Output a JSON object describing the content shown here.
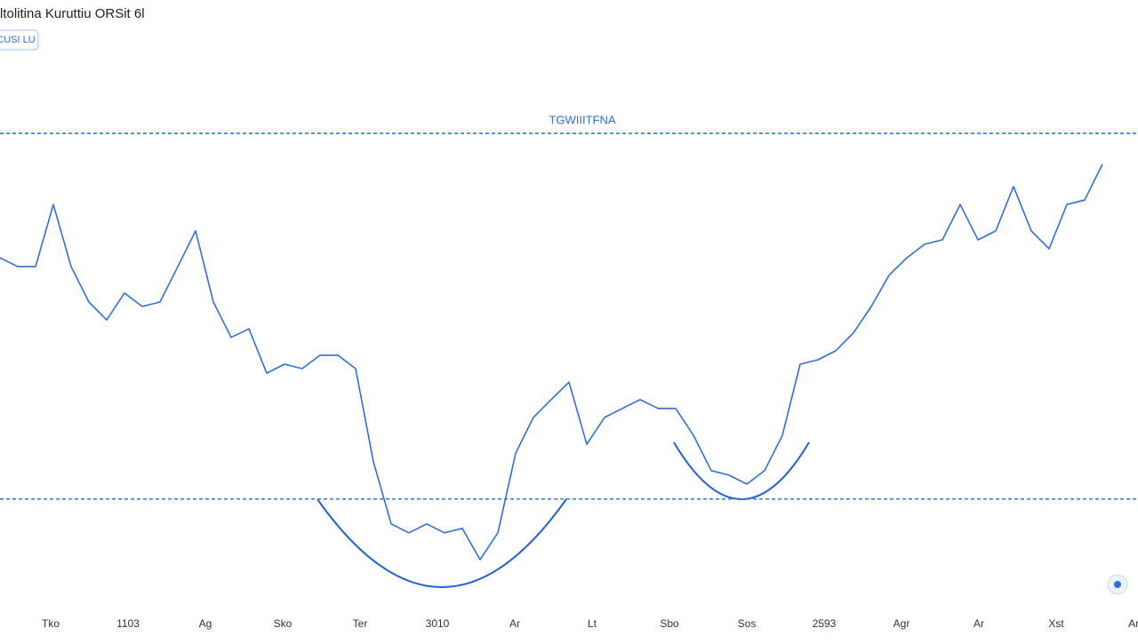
{
  "chart_data": {
    "type": "line",
    "title": "ltolitina Kuruttiu ORSit 6l",
    "badge": "CUSI LU",
    "annotation": "TGWIIITFNA",
    "x_labels": [
      "Tko",
      "1103",
      "Ag",
      "Sko",
      "Ter",
      "3010",
      "Ar",
      "Lt",
      "Sbo",
      "Sos",
      "2593",
      "Agr",
      "Ar",
      "Xst",
      "Ar"
    ],
    "series": [
      {
        "color": "#2f6fd6",
        "values": [
          71.4,
          69.6,
          69.6,
          82.1,
          69.6,
          62.5,
          58.9,
          64.3,
          61.6,
          62.5,
          69.6,
          76.8,
          62.5,
          55.4,
          57.1,
          48.2,
          50,
          49.1,
          51.8,
          51.8,
          49.1,
          30.4,
          17.9,
          16.1,
          17.9,
          16.1,
          17,
          10.7,
          16.1,
          32.1,
          39.3,
          42.9,
          46.4,
          33.9,
          39.3,
          41.1,
          42.9,
          41.1,
          41.1,
          35.7,
          28.6,
          27.7,
          25.9,
          28.6,
          35.7,
          50,
          50.9,
          52.7,
          56.3,
          61.6,
          67.9,
          71.4,
          74.1,
          75,
          82.1,
          75,
          76.8,
          85.7,
          76.8,
          73.2,
          82.1,
          83,
          90.2
        ]
      }
    ],
    "resistance": 96.4,
    "support": 22.9,
    "level_color": "#2f7fd6",
    "ylim": [
      0,
      100
    ]
  }
}
